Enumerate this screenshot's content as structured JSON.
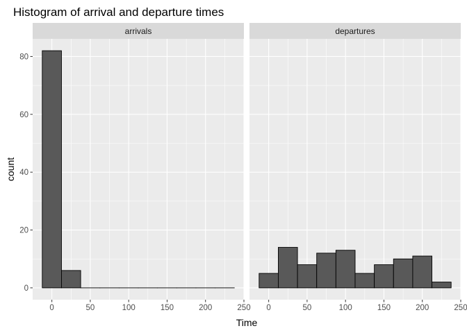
{
  "chart_data": {
    "type": "bar",
    "title": "Histogram of arrival and departure times",
    "xlabel": "Time",
    "ylabel": "count",
    "xlim": [
      -25,
      250
    ],
    "ylim": [
      -4.1,
      86.1
    ],
    "x_ticks": [
      "0",
      "50",
      "100",
      "150",
      "200",
      "250"
    ],
    "y_ticks": [
      "0",
      "20",
      "40",
      "60",
      "80"
    ],
    "grid": true,
    "legend": "none",
    "bar_fill": "#595959",
    "bar_outline": "#000000",
    "panel_background": "#ebebeb",
    "strip_background": "#d9d9d9",
    "facets": [
      {
        "name": "arrivals",
        "bins": [
          {
            "x_start": -12.5,
            "x_end": 12.5,
            "count": 82
          },
          {
            "x_start": 12.5,
            "x_end": 37.5,
            "count": 6
          },
          {
            "x_start": 37.5,
            "x_end": 62.5,
            "count": 0
          },
          {
            "x_start": 62.5,
            "x_end": 87.5,
            "count": 0
          },
          {
            "x_start": 87.5,
            "x_end": 112.5,
            "count": 0
          },
          {
            "x_start": 112.5,
            "x_end": 137.5,
            "count": 0
          },
          {
            "x_start": 137.5,
            "x_end": 162.5,
            "count": 0
          },
          {
            "x_start": 162.5,
            "x_end": 187.5,
            "count": 0
          },
          {
            "x_start": 187.5,
            "x_end": 212.5,
            "count": 0
          },
          {
            "x_start": 212.5,
            "x_end": 237.5,
            "count": 0
          }
        ]
      },
      {
        "name": "departures",
        "bins": [
          {
            "x_start": -12.5,
            "x_end": 12.5,
            "count": 5
          },
          {
            "x_start": 12.5,
            "x_end": 37.5,
            "count": 14
          },
          {
            "x_start": 37.5,
            "x_end": 62.5,
            "count": 8
          },
          {
            "x_start": 62.5,
            "x_end": 87.5,
            "count": 12
          },
          {
            "x_start": 87.5,
            "x_end": 112.5,
            "count": 13
          },
          {
            "x_start": 112.5,
            "x_end": 137.5,
            "count": 5
          },
          {
            "x_start": 137.5,
            "x_end": 162.5,
            "count": 8
          },
          {
            "x_start": 162.5,
            "x_end": 187.5,
            "count": 10
          },
          {
            "x_start": 187.5,
            "x_end": 212.5,
            "count": 11
          },
          {
            "x_start": 212.5,
            "x_end": 237.5,
            "count": 2
          }
        ]
      }
    ]
  }
}
